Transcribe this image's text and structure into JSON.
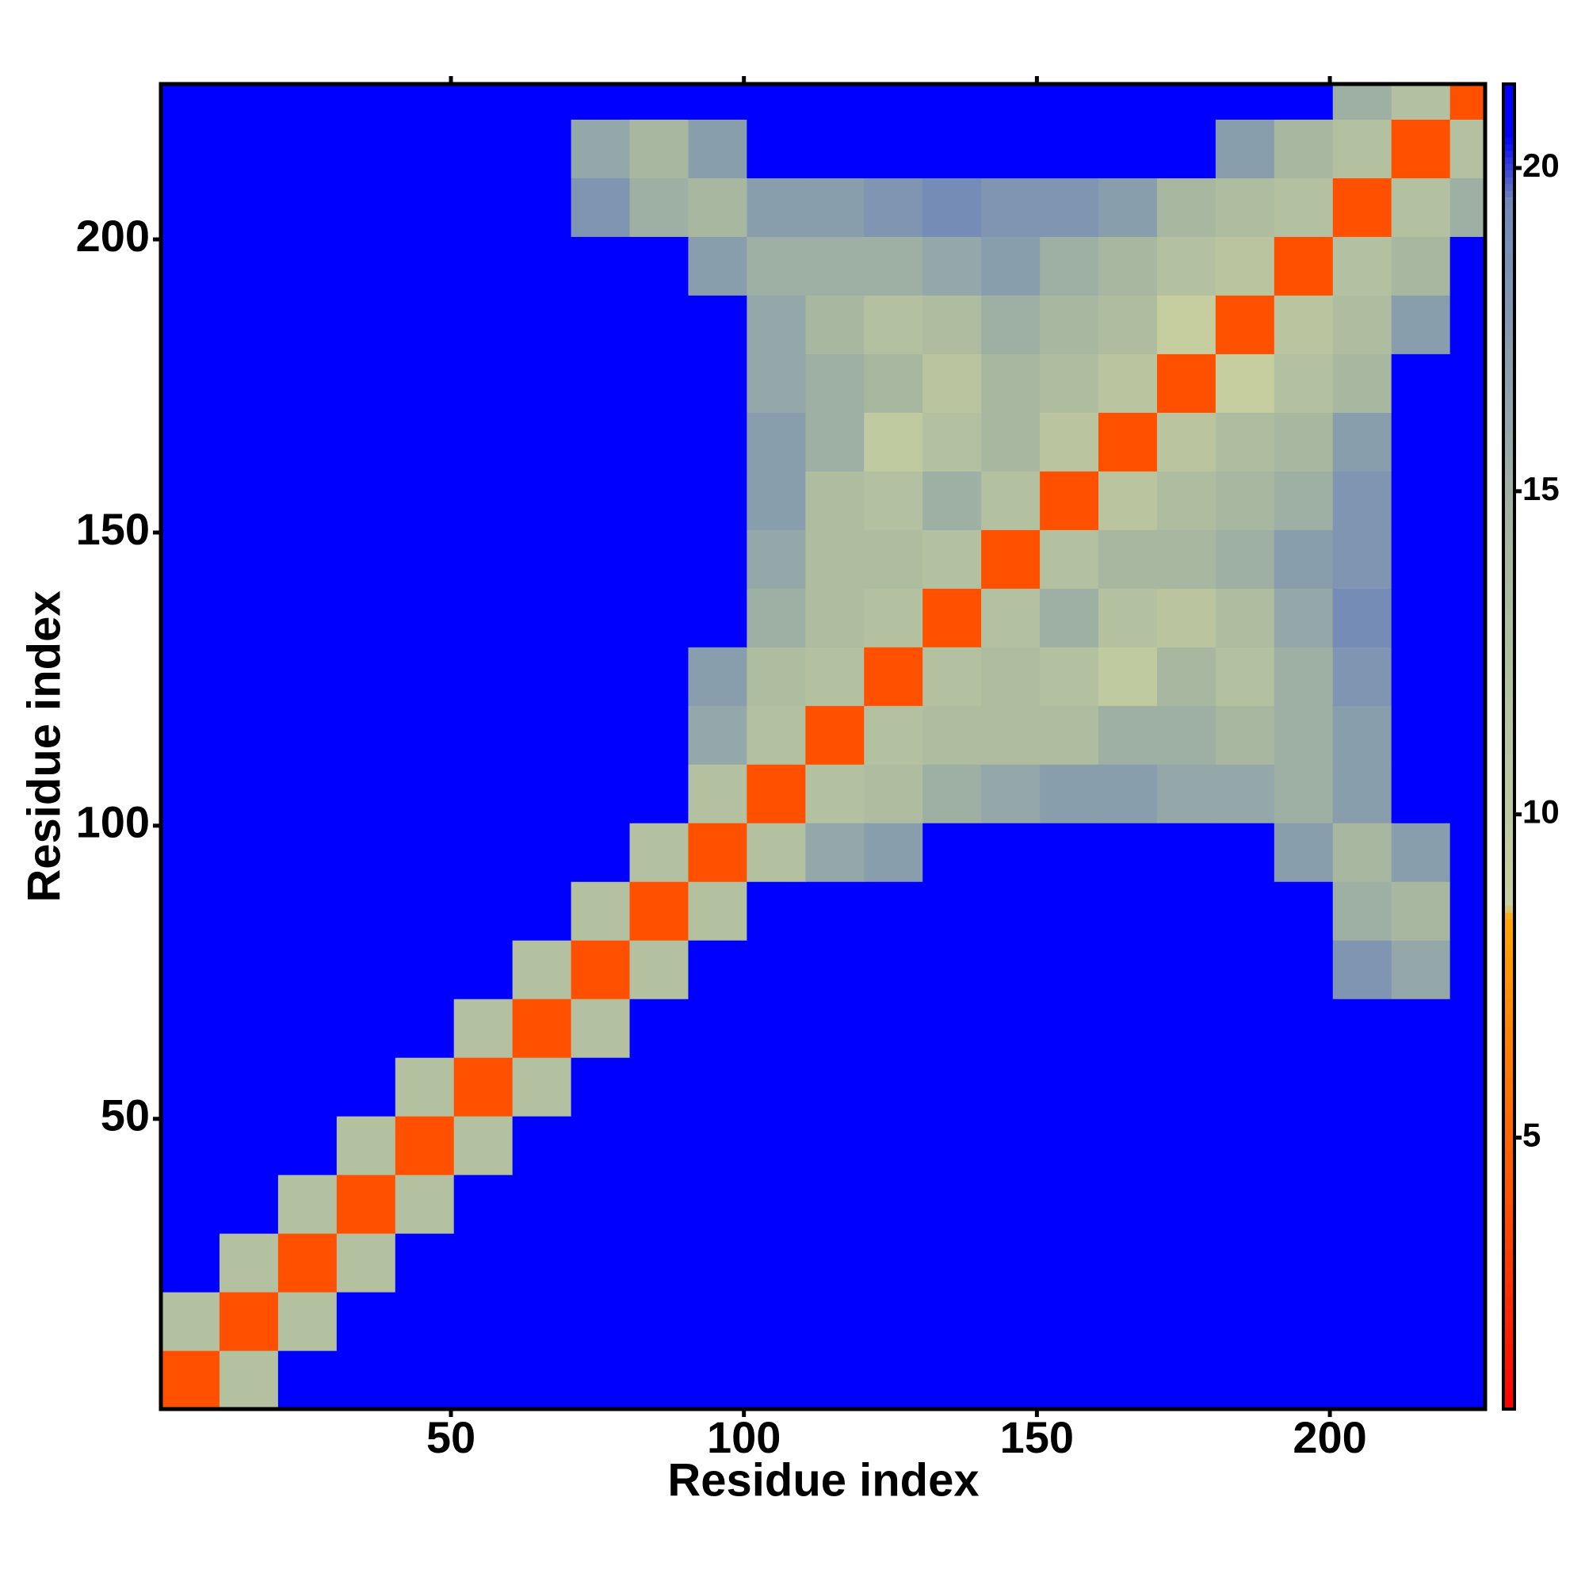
{
  "chart_data": {
    "type": "heatmap",
    "xlabel": "Residue index",
    "ylabel": "Residue index",
    "x_bins": [
      0.5,
      10.5,
      20.5,
      30.5,
      40.5,
      50.5,
      60.5,
      70.5,
      80.5,
      90.5,
      100.5,
      110.5,
      120.5,
      130.5,
      140.5,
      150.5,
      160.5,
      170.5,
      180.5,
      190.5,
      200.5,
      210.5,
      220.5,
      226.5
    ],
    "y_bins": [
      0.5,
      10.5,
      20.5,
      30.5,
      40.5,
      50.5,
      60.5,
      70.5,
      80.5,
      90.5,
      100.5,
      110.5,
      120.5,
      130.5,
      140.5,
      150.5,
      160.5,
      170.5,
      180.5,
      190.5,
      200.5,
      210.5,
      220.5,
      226.5
    ],
    "values": [
      [
        4,
        12,
        21,
        21,
        21,
        21,
        21,
        21,
        21,
        21,
        21,
        21,
        21,
        21,
        21,
        21,
        21,
        21,
        21,
        21,
        21,
        21,
        21
      ],
      [
        12,
        4,
        12,
        21,
        21,
        21,
        21,
        21,
        21,
        21,
        21,
        21,
        21,
        21,
        21,
        21,
        21,
        21,
        21,
        21,
        21,
        21,
        21
      ],
      [
        21,
        12,
        4,
        12,
        21,
        21,
        21,
        21,
        21,
        21,
        21,
        21,
        21,
        21,
        21,
        21,
        21,
        21,
        21,
        21,
        21,
        21,
        21
      ],
      [
        21,
        21,
        12,
        4,
        12,
        21,
        21,
        21,
        21,
        21,
        21,
        21,
        21,
        21,
        21,
        21,
        21,
        21,
        21,
        21,
        21,
        21,
        21
      ],
      [
        21,
        21,
        21,
        12,
        4,
        12,
        21,
        21,
        21,
        21,
        21,
        21,
        21,
        21,
        21,
        21,
        21,
        21,
        21,
        21,
        21,
        21,
        21
      ],
      [
        21,
        21,
        21,
        21,
        12,
        4,
        12,
        21,
        21,
        21,
        21,
        21,
        21,
        21,
        21,
        21,
        21,
        21,
        21,
        21,
        21,
        21,
        21
      ],
      [
        21,
        21,
        21,
        21,
        21,
        12,
        4,
        12,
        21,
        21,
        21,
        21,
        21,
        21,
        21,
        21,
        21,
        21,
        21,
        21,
        21,
        21,
        21
      ],
      [
        21,
        21,
        21,
        21,
        21,
        21,
        12,
        4,
        12,
        21,
        21,
        21,
        21,
        21,
        21,
        21,
        21,
        21,
        21,
        21,
        18,
        16,
        21
      ],
      [
        21,
        21,
        21,
        21,
        21,
        21,
        21,
        12,
        4,
        12,
        21,
        21,
        21,
        21,
        21,
        21,
        21,
        21,
        21,
        21,
        15,
        14,
        21
      ],
      [
        21,
        21,
        21,
        21,
        21,
        21,
        21,
        21,
        12,
        4,
        12,
        16,
        17,
        21,
        21,
        21,
        21,
        21,
        21,
        17,
        14,
        17,
        21
      ],
      [
        21,
        21,
        21,
        21,
        21,
        21,
        21,
        21,
        21,
        12,
        4,
        12,
        13,
        15,
        16,
        17,
        17,
        16,
        16,
        15,
        17,
        21,
        21
      ],
      [
        21,
        21,
        21,
        21,
        21,
        21,
        21,
        21,
        21,
        16,
        12,
        4,
        12,
        13,
        13,
        13,
        15,
        15,
        14,
        15,
        17,
        21,
        21
      ],
      [
        21,
        21,
        21,
        21,
        21,
        21,
        21,
        21,
        21,
        17,
        13,
        12,
        4,
        12,
        13,
        12,
        10,
        14,
        12,
        15,
        18,
        21,
        21
      ],
      [
        21,
        21,
        21,
        21,
        21,
        21,
        21,
        21,
        21,
        21,
        15,
        13,
        12,
        4,
        12,
        15,
        12,
        11,
        13,
        16,
        19,
        21,
        21
      ],
      [
        21,
        21,
        21,
        21,
        21,
        21,
        21,
        21,
        21,
        21,
        16,
        13,
        13,
        12,
        4,
        12,
        14,
        14,
        15,
        17,
        18,
        21,
        21
      ],
      [
        21,
        21,
        21,
        21,
        21,
        21,
        21,
        21,
        21,
        21,
        17,
        13,
        12,
        15,
        12,
        4,
        11,
        13,
        14,
        15,
        18,
        21,
        21
      ],
      [
        21,
        21,
        21,
        21,
        21,
        21,
        21,
        21,
        21,
        21,
        17,
        15,
        10,
        12,
        14,
        11,
        4,
        11,
        13,
        14,
        17,
        21,
        21
      ],
      [
        21,
        21,
        21,
        21,
        21,
        21,
        21,
        21,
        21,
        21,
        16,
        15,
        14,
        11,
        14,
        13,
        11,
        4,
        9,
        12,
        14,
        21,
        21
      ],
      [
        21,
        21,
        21,
        21,
        21,
        21,
        21,
        21,
        21,
        21,
        16,
        14,
        12,
        13,
        15,
        14,
        13,
        9,
        4,
        11,
        13,
        17,
        21
      ],
      [
        21,
        21,
        21,
        21,
        21,
        21,
        21,
        21,
        21,
        17,
        15,
        15,
        15,
        16,
        17,
        15,
        14,
        12,
        11,
        4,
        12,
        14,
        21
      ],
      [
        21,
        21,
        21,
        21,
        21,
        21,
        21,
        18,
        15,
        14,
        17,
        17,
        18,
        19,
        18,
        18,
        17,
        14,
        13,
        12,
        4,
        12,
        15
      ],
      [
        21,
        21,
        21,
        21,
        21,
        21,
        21,
        16,
        14,
        17,
        21,
        21,
        21,
        21,
        21,
        21,
        21,
        21,
        17,
        14,
        12,
        4,
        12
      ],
      [
        21,
        21,
        21,
        21,
        21,
        21,
        21,
        21,
        21,
        21,
        21,
        21,
        21,
        21,
        21,
        21,
        21,
        21,
        21,
        21,
        15,
        12,
        4
      ]
    ],
    "xlim": [
      0.5,
      226.5
    ],
    "ylim": [
      0.5,
      226.5
    ],
    "xticks": [
      50,
      100,
      150,
      200
    ],
    "yticks": [
      50,
      100,
      150,
      200
    ],
    "zlim": [
      0.8,
      21.3
    ],
    "zticks": [
      5,
      10,
      15,
      20
    ],
    "colorscale": [
      [
        0.8,
        "#ff0000"
      ],
      [
        4,
        "#ff5000"
      ],
      [
        8.4,
        "#ffa500"
      ],
      [
        8.6,
        "#c8d0a0"
      ],
      [
        14,
        "#a8b8a0"
      ],
      [
        19.5,
        "#7088b8"
      ],
      [
        20.5,
        "#0000ff"
      ],
      [
        21.3,
        "#0000ff"
      ]
    ]
  }
}
